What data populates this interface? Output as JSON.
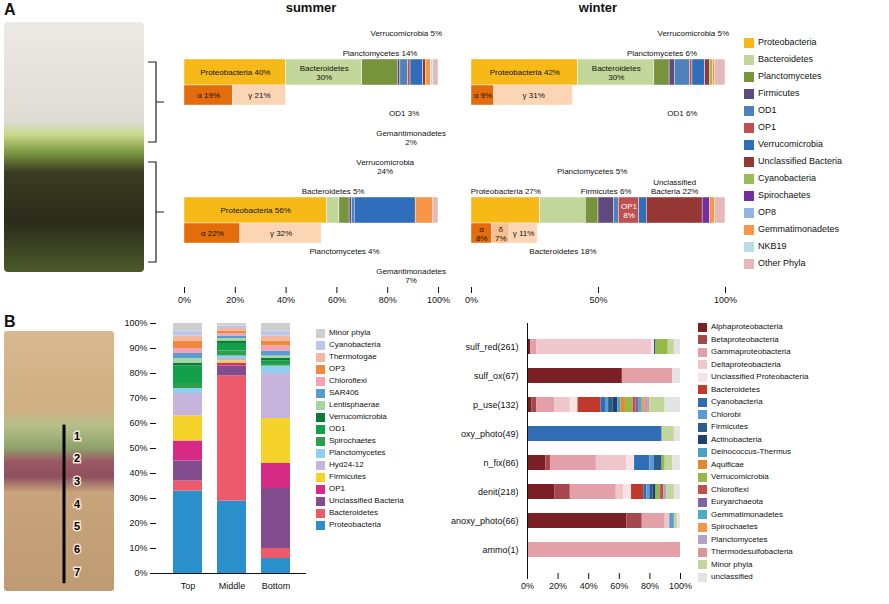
{
  "chart_data": [
    {
      "type": "bar",
      "panel_label": "A",
      "orientation": "horizontal",
      "stacked": true,
      "data_labels": true,
      "legend": "right",
      "series": [
        {
          "name": "Proteobacteria",
          "color": "#f6b918"
        },
        {
          "name": "Bacteroidetes",
          "color": "#c4d79b"
        },
        {
          "name": "Planctomycetes",
          "color": "#77933c"
        },
        {
          "name": "Firmicutes",
          "color": "#604a7b"
        },
        {
          "name": "OD1",
          "color": "#4f81bd"
        },
        {
          "name": "OP1",
          "color": "#c0504d"
        },
        {
          "name": "Verrucomicrobia",
          "color": "#2f6eba"
        },
        {
          "name": "Unclassified Bacteria",
          "color": "#953735"
        },
        {
          "name": "Cyanobacteria",
          "color": "#9bbb59"
        },
        {
          "name": "Spirochaetes",
          "color": "#7030a0"
        },
        {
          "name": "OP8",
          "color": "#8eb4e3"
        },
        {
          "name": "Gemmatimonadetes",
          "color": "#f79646"
        },
        {
          "name": "NKB19",
          "color": "#b7dee8"
        },
        {
          "name": "Other Phyla",
          "color": "#e6b9b8"
        }
      ],
      "subgroups": [
        {
          "name": "α",
          "color": "#e46c0a"
        },
        {
          "name": "δ",
          "color": "#fac090"
        },
        {
          "name": "γ",
          "color": "#fcd5b4"
        }
      ],
      "columns": [
        {
          "title": "summer",
          "xlim": [
            0,
            100
          ],
          "xticks": [
            {
              "value": 0,
              "label": "0%"
            },
            {
              "value": 20,
              "label": "20%"
            },
            {
              "value": 40,
              "label": "40%"
            },
            {
              "value": 60,
              "label": "60%"
            },
            {
              "value": 80,
              "label": "80%"
            },
            {
              "value": 100,
              "label": "100%"
            }
          ],
          "bars": [
            {
              "values": [
                40,
                30,
                14,
                1,
                3,
                1,
                5,
                1,
                0,
                0,
                0,
                2,
                1,
                2
              ],
              "value_labels": [
                "Proteobacteria 40%",
                "Bacteroidetes 30%",
                "Planctomycetes 14%",
                null,
                "OD1 3%",
                null,
                "Verrucomicrobia 5%",
                null,
                null,
                null,
                null,
                "Gemantimonadetes 2%",
                null,
                null
              ],
              "subgroup_values": [
                19,
                0,
                21
              ],
              "subgroup_value_labels": [
                "α 19%",
                null,
                "γ 21%"
              ]
            },
            {
              "values": [
                56,
                5,
                4,
                1,
                1,
                0,
                24,
                0,
                0,
                0,
                0,
                7,
                0,
                2
              ],
              "value_labels": [
                "Proteobacteria 56%",
                "Bacteroidetes 5%",
                "Planctomycetes 4%",
                null,
                null,
                null,
                "Verrucomicrobia 24%",
                null,
                null,
                null,
                null,
                "Gemantimonadetes 7%",
                null,
                null
              ],
              "subgroup_values": [
                22,
                0,
                32
              ],
              "subgroup_value_labels": [
                "α 22%",
                null,
                "γ 32%"
              ]
            }
          ]
        },
        {
          "title": "winter",
          "xlim": [
            0,
            100
          ],
          "xticks": [
            {
              "value": 0,
              "label": "0%"
            },
            {
              "value": 50,
              "label": "50%"
            },
            {
              "value": 100,
              "label": "100%"
            }
          ],
          "bars": [
            {
              "values": [
                42,
                30,
                6,
                2,
                6,
                1,
                5,
                2,
                1,
                0,
                0,
                1,
                0,
                4
              ],
              "value_labels": [
                "Proteobacteria 42%",
                "Bacteroidetes 30%",
                "Planctomycetes 6%",
                null,
                "OD1 6%",
                null,
                "Verrucomicrobia 5%",
                null,
                null,
                null,
                null,
                null,
                null,
                null
              ],
              "subgroup_values": [
                9,
                0,
                31
              ],
              "subgroup_value_labels": [
                "α 9%",
                null,
                "γ 31%"
              ]
            },
            {
              "values": [
                27,
                18,
                5,
                6,
                2,
                8,
                3,
                22,
                0,
                3,
                0,
                2,
                0,
                4
              ],
              "value_labels": [
                "Proteobacteria 27%",
                "Bacteroidetes 18%",
                "Planctomycetes 5%",
                "Firmicutes 6%",
                null,
                "OP1 8%",
                null,
                "Unclassified Bacteria 22%",
                null,
                null,
                null,
                null,
                null,
                null
              ],
              "subgroup_values": [
                8,
                7,
                11
              ],
              "subgroup_value_labels": [
                "α 8%",
                "δ 7%",
                "γ 11%"
              ]
            }
          ]
        }
      ]
    },
    {
      "type": "bar",
      "panel_label": "B",
      "stacked": true,
      "legend": "right",
      "photo_labels": [
        "1",
        "2",
        "3",
        "4",
        "5",
        "6",
        "7"
      ],
      "categories": [
        "Top",
        "Middle",
        "Bottom"
      ],
      "ylim": [
        0,
        100
      ],
      "yticks": [
        {
          "value": 0,
          "label": "0%"
        },
        {
          "value": 10,
          "label": "10%"
        },
        {
          "value": 20,
          "label": "20%"
        },
        {
          "value": 30,
          "label": "30%"
        },
        {
          "value": 40,
          "label": "40%"
        },
        {
          "value": 50,
          "label": "50%"
        },
        {
          "value": 60,
          "label": "60%"
        },
        {
          "value": 70,
          "label": "70%"
        },
        {
          "value": 80,
          "label": "80%"
        },
        {
          "value": 90,
          "label": "90%"
        },
        {
          "value": 100,
          "label": "100%"
        }
      ],
      "series": [
        {
          "name": "Proteobacteria",
          "color": "#2a8fcb",
          "values": [
            33,
            29,
            6
          ]
        },
        {
          "name": "Bacteroidetes",
          "color": "#ec5a6c",
          "values": [
            4,
            50,
            4
          ]
        },
        {
          "name": "Unclassified Bacteria",
          "color": "#834c8f",
          "values": [
            8,
            4,
            24
          ]
        },
        {
          "name": "OP1",
          "color": "#d62a85",
          "values": [
            8,
            1,
            10
          ]
        },
        {
          "name": "Firmicutes",
          "color": "#f6d32b",
          "values": [
            10,
            1,
            18
          ]
        },
        {
          "name": "Hyd24-12",
          "color": "#c6b4dc",
          "values": [
            9,
            1,
            18
          ]
        },
        {
          "name": "Planctomycetes",
          "color": "#8fd0f0",
          "values": [
            2,
            1,
            3
          ]
        },
        {
          "name": "Spirochaetes",
          "color": "#2e9f4e",
          "values": [
            2,
            2,
            1
          ]
        },
        {
          "name": "OD1",
          "color": "#14a04a",
          "values": [
            7,
            3,
            1
          ]
        },
        {
          "name": "Verrucomicrobia",
          "color": "#0b7a3b",
          "values": [
            1,
            1,
            1
          ]
        },
        {
          "name": "Lentisphaerae",
          "color": "#a5d5a0",
          "values": [
            2,
            1,
            1
          ]
        },
        {
          "name": "SAR406",
          "color": "#5a9bd4",
          "values": [
            2,
            1,
            2
          ]
        },
        {
          "name": "Chloroflexi",
          "color": "#f3a3b5",
          "values": [
            2,
            1,
            2
          ]
        },
        {
          "name": "OP3",
          "color": "#ef8a3c",
          "values": [
            3,
            1,
            2
          ]
        },
        {
          "name": "Thermotogae",
          "color": "#f4b79f",
          "values": [
            2,
            1,
            2
          ]
        },
        {
          "name": "Cyanobacteria",
          "color": "#b8c8e8",
          "values": [
            2,
            1,
            2
          ]
        },
        {
          "name": "Minor phyla",
          "color": "#cfcfcf",
          "values": [
            3,
            1,
            3
          ]
        }
      ]
    },
    {
      "type": "bar",
      "orientation": "horizontal",
      "stacked": true,
      "legend": "right",
      "categories": [
        "sulf_red(261)",
        "sulf_ox(67)",
        "p_use(132)",
        "oxy_photo(49)",
        "n_fix(86)",
        "denit(218)",
        "anoxy_photo(66)",
        "ammo(1)"
      ],
      "xlim": [
        0,
        100
      ],
      "xticks": [
        {
          "value": 0,
          "label": "0%"
        },
        {
          "value": 20,
          "label": "20%"
        },
        {
          "value": 40,
          "label": "40%"
        },
        {
          "value": 60,
          "label": "60%"
        },
        {
          "value": 80,
          "label": "80%"
        },
        {
          "value": 100,
          "label": "100%"
        }
      ],
      "series": [
        {
          "name": "Alphaproteobacteria",
          "color": "#7a1f24",
          "values": [
            2,
            62,
            3,
            0,
            12,
            18,
            65,
            0
          ]
        },
        {
          "name": "Betaproteobacteria",
          "color": "#a5484e",
          "values": [
            0,
            0,
            3,
            0,
            3,
            10,
            10,
            0
          ]
        },
        {
          "name": "Gammaproteobacteria",
          "color": "#e3a0a8",
          "values": [
            4,
            33,
            12,
            0,
            30,
            30,
            15,
            100
          ]
        },
        {
          "name": "Deltaproteobacteria",
          "color": "#f0c6cd",
          "values": [
            75,
            0,
            10,
            0,
            20,
            5,
            3,
            0
          ]
        },
        {
          "name": "Unclassified Proteobacteria",
          "color": "#f7e2e6",
          "values": [
            2,
            0,
            5,
            0,
            5,
            5,
            0,
            0
          ]
        },
        {
          "name": "Bacteroidetes",
          "color": "#c0392b",
          "values": [
            0,
            0,
            15,
            0,
            0,
            8,
            0,
            0
          ]
        },
        {
          "name": "Cyanobacteria",
          "color": "#2f6db5",
          "values": [
            0,
            0,
            3,
            88,
            10,
            2,
            0,
            0
          ]
        },
        {
          "name": "Chlorobi",
          "color": "#5b9bd5",
          "values": [
            0,
            0,
            2,
            0,
            3,
            2,
            3,
            0
          ]
        },
        {
          "name": "Firmicutes",
          "color": "#2e5c8a",
          "values": [
            1,
            0,
            3,
            0,
            5,
            2,
            0,
            0
          ]
        },
        {
          "name": "Actinobacteria",
          "color": "#1f3f73",
          "values": [
            0,
            0,
            3,
            0,
            0,
            2,
            0,
            0
          ]
        },
        {
          "name": "Deinococcus-Thermus",
          "color": "#4aa3c6",
          "values": [
            0,
            0,
            2,
            0,
            0,
            0,
            0,
            0
          ]
        },
        {
          "name": "Aquificae",
          "color": "#e3892b",
          "values": [
            0,
            0,
            3,
            0,
            0,
            0,
            0,
            0
          ]
        },
        {
          "name": "Verrucomicrobia",
          "color": "#96b94a",
          "values": [
            8,
            0,
            5,
            0,
            2,
            3,
            0,
            0
          ]
        },
        {
          "name": "Chloroflexi",
          "color": "#c0504d",
          "values": [
            0,
            0,
            2,
            0,
            0,
            2,
            0,
            0
          ]
        },
        {
          "name": "Euryarchaeota",
          "color": "#8064a2",
          "values": [
            0,
            0,
            2,
            0,
            0,
            0,
            0,
            0
          ]
        },
        {
          "name": "Gemmatimonadetes",
          "color": "#4bacc6",
          "values": [
            0,
            0,
            2,
            0,
            0,
            0,
            0,
            0
          ]
        },
        {
          "name": "Spirochaetes",
          "color": "#f79646",
          "values": [
            0,
            0,
            2,
            0,
            0,
            0,
            0,
            0
          ]
        },
        {
          "name": "Planctomycetes",
          "color": "#b3a2c7",
          "values": [
            0,
            0,
            2,
            0,
            0,
            2,
            0,
            0
          ]
        },
        {
          "name": "Thermodesulfobacteria",
          "color": "#d99694",
          "values": [
            0,
            0,
            1,
            0,
            0,
            0,
            0,
            0
          ]
        },
        {
          "name": "Minor phyla",
          "color": "#c4d79b",
          "values": [
            4,
            0,
            10,
            8,
            5,
            5,
            2,
            0
          ]
        },
        {
          "name": "unclassified",
          "color": "#e4e4e4",
          "values": [
            4,
            5,
            10,
            4,
            5,
            4,
            2,
            0
          ]
        }
      ]
    }
  ]
}
